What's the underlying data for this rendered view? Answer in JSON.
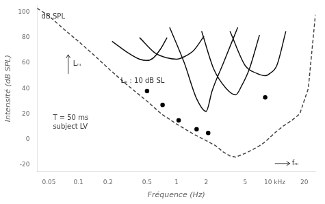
{
  "chart_data": {
    "type": "line",
    "xlabel": "Fréquence (Hz)",
    "ylabel": "Intensité (dB SPL)",
    "log": "x",
    "xlim": [
      0.038,
      26
    ],
    "ylim": [
      -25,
      105
    ],
    "xticks": [
      0.05,
      0.1,
      0.2,
      0.5,
      1,
      2,
      5,
      {
        "value": 10,
        "label": "10 kHz"
      },
      20
    ],
    "yticks": [
      -20,
      0,
      20,
      40,
      60,
      80,
      100
    ],
    "grid": false,
    "series": [
      {
        "x": [
          0.038,
          0.05,
          0.07,
          0.1,
          0.15,
          0.2,
          0.3,
          0.5,
          0.7,
          1.0,
          1.5,
          2.0,
          2.5,
          3.0,
          3.5,
          4.0,
          5.0,
          6.0,
          7.0,
          8.0,
          10.0,
          12.0,
          15.0,
          18.0,
          22.0,
          26.0
        ],
        "values": [
          103,
          97,
          87,
          77,
          65,
          56,
          44,
          30,
          20,
          12,
          4,
          -1,
          -5,
          -10,
          -13,
          -14,
          -11,
          -8,
          -5,
          -2,
          5,
          10,
          15,
          20,
          40,
          98
        ],
        "color": "#444444",
        "line_style": "dashed"
      },
      {
        "x": [
          0.22,
          0.32,
          0.42,
          0.5,
          0.58,
          0.7,
          0.8
        ],
        "values": [
          77,
          68,
          63,
          62,
          64,
          72,
          80
        ],
        "color": "#111111",
        "line_style": "solid"
      },
      {
        "x": [
          0.42,
          0.6,
          0.8,
          1.0,
          1.2,
          1.5,
          1.9
        ],
        "values": [
          80,
          68,
          64,
          63,
          65,
          70,
          81
        ],
        "color": "#111111",
        "line_style": "solid"
      },
      {
        "x": [
          0.85,
          1.2,
          1.6,
          2.0,
          2.3,
          3.0,
          4.2
        ],
        "values": [
          88,
          60,
          32,
          22,
          38,
          60,
          88
        ],
        "color": "#111111",
        "line_style": "solid"
      },
      {
        "x": [
          1.8,
          2.4,
          3.2,
          4.0,
          4.6,
          5.5,
          7.0
        ],
        "values": [
          85,
          55,
          40,
          35,
          42,
          55,
          82
        ],
        "color": "#111111",
        "line_style": "solid"
      },
      {
        "x": [
          3.5,
          5.0,
          6.5,
          8.0,
          9.0,
          10.5,
          13.0
        ],
        "values": [
          85,
          58,
          52,
          50,
          52,
          58,
          85
        ],
        "color": "#111111",
        "line_style": "solid"
      },
      {
        "type": "scatter",
        "x": [
          0.5,
          0.72,
          1.05,
          1.6,
          2.1,
          8.0
        ],
        "values": [
          38,
          27,
          15,
          8,
          5,
          33
        ],
        "color": "black",
        "marker": "circle"
      }
    ],
    "annotations": [
      {
        "text": "dB SPL",
        "x": 0.042,
        "y": 99
      },
      {
        "text": "Lₘ",
        "x": 0.088,
        "y": 59
      },
      {
        "text": "Lₚ : 10 dB SL",
        "x": 0.27,
        "y": 46
      },
      {
        "text": "T = 50 ms\nsubject LV",
        "x": 0.055,
        "y": 13
      },
      {
        "text": "fₘ",
        "x": 15.0,
        "y": -19
      }
    ]
  }
}
